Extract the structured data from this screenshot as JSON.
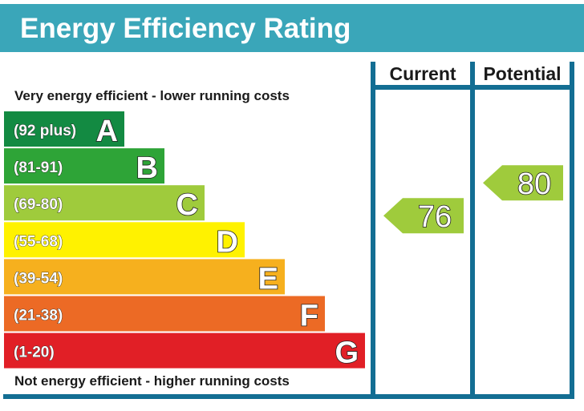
{
  "chart_data": {
    "type": "bar",
    "title": "Energy Efficiency Rating",
    "top_note": "Very energy efficient - lower running costs",
    "bottom_note": "Not energy efficient - higher running costs",
    "columns": [
      "Current",
      "Potential"
    ],
    "bands": [
      {
        "range": "(92 plus)",
        "letter": "A",
        "color": "#138a42"
      },
      {
        "range": "(81-91)",
        "letter": "B",
        "color": "#2ea437"
      },
      {
        "range": "(69-80)",
        "letter": "C",
        "color": "#9fcb3c"
      },
      {
        "range": "(55-68)",
        "letter": "D",
        "color": "#fff200"
      },
      {
        "range": "(39-54)",
        "letter": "E",
        "color": "#f6b01e"
      },
      {
        "range": "(21-38)",
        "letter": "F",
        "color": "#ec6a25"
      },
      {
        "range": "(1-20)",
        "letter": "G",
        "color": "#e11f26"
      }
    ],
    "ratings": {
      "current": {
        "value": 76,
        "band": "C",
        "color": "#9fcb3c"
      },
      "potential": {
        "value": 80,
        "band": "C",
        "color": "#9fcb3c"
      }
    }
  }
}
